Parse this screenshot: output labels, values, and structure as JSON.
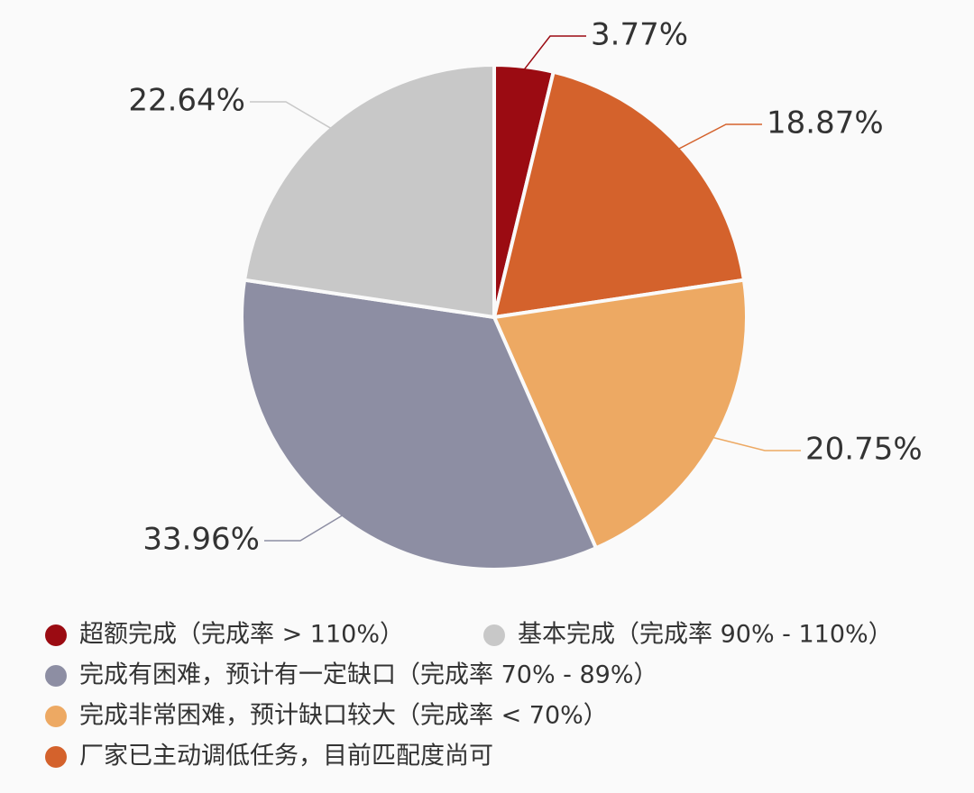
{
  "chart_data": {
    "type": "pie",
    "categories": [
      "超额完成（完成率 > 110%）",
      "厂家已主动调低任务，目前匹配度尚可",
      "完成非常困难，预计缺口较大（完成率 < 70%）",
      "完成有困难，预计有一定缺口（完成率 70% - 89%）",
      "基本完成（完成率 90% - 110%）"
    ],
    "values": [
      3.77,
      18.87,
      20.75,
      33.96,
      22.64
    ],
    "value_labels": [
      "3.77%",
      "18.87%",
      "20.75%",
      "33.96%",
      "22.64%"
    ],
    "colors": [
      "#9b0b12",
      "#d4622c",
      "#eda963",
      "#8d8ea3",
      "#c8c8c8"
    ]
  }
}
